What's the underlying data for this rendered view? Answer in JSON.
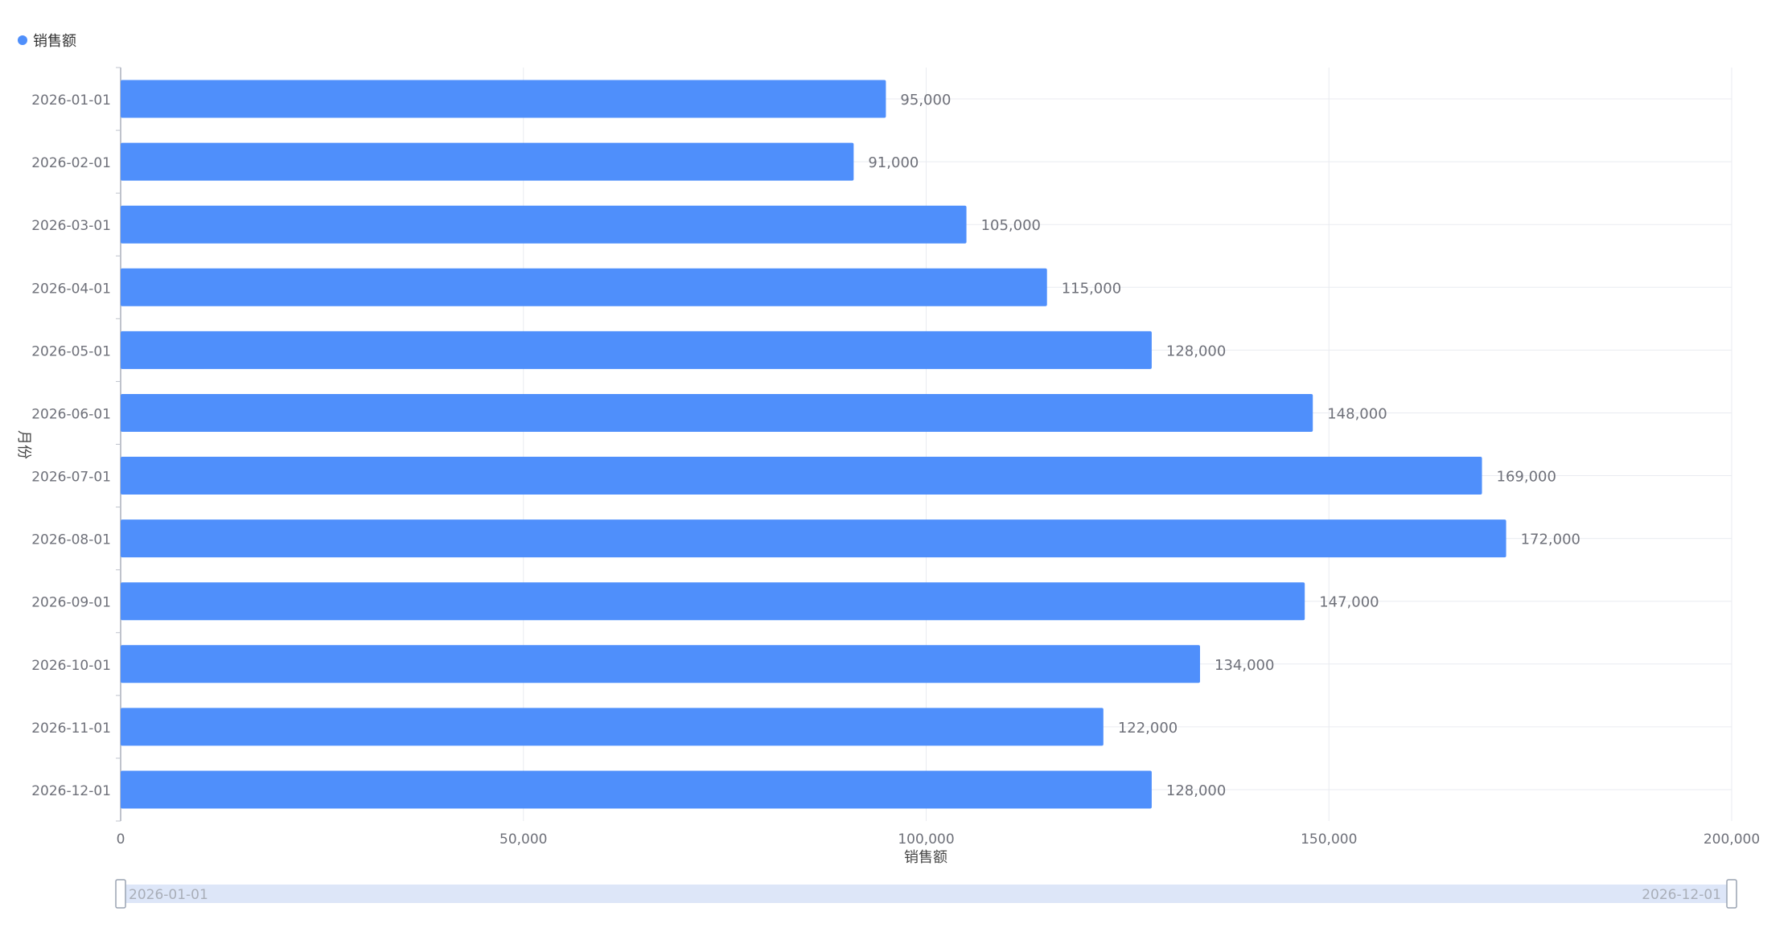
{
  "legend": {
    "label": "销售额",
    "placement": "top-left"
  },
  "colors": {
    "bar": "#4f8ffb",
    "grid": "#e9ebf0",
    "axis_line": "#bfc3cc",
    "tick_text": "#6e7079",
    "axis_title": "#464646",
    "slider_fill": "#dde6f8",
    "slider_handle": "#ffffff",
    "slider_handle_border": "#9aa3b2",
    "slider_text": "#a9aeb8"
  },
  "chart_data": {
    "type": "bar",
    "orientation": "horizontal",
    "categories": [
      "2026-01-01",
      "2026-02-01",
      "2026-03-01",
      "2026-04-01",
      "2026-05-01",
      "2026-06-01",
      "2026-07-01",
      "2026-08-01",
      "2026-09-01",
      "2026-10-01",
      "2026-11-01",
      "2026-12-01"
    ],
    "series": [
      {
        "name": "销售额",
        "values": [
          95000,
          91000,
          105000,
          115000,
          128000,
          148000,
          169000,
          172000,
          147000,
          134000,
          122000,
          128000
        ],
        "labels": [
          "95,000",
          "91,000",
          "105,000",
          "115,000",
          "128,000",
          "148,000",
          "169,000",
          "172,000",
          "147,000",
          "134,000",
          "122,000",
          "128,000"
        ]
      }
    ],
    "xlabel": "销售额",
    "ylabel": "月份",
    "xlim": [
      0,
      200000
    ],
    "x_ticks": [
      0,
      50000,
      100000,
      150000,
      200000
    ],
    "x_tick_labels": [
      "0",
      "50,000",
      "100,000",
      "150,000",
      "200,000"
    ],
    "grid": true
  },
  "data_zoom": {
    "start_label": "2026-01-01",
    "end_label": "2026-12-01"
  }
}
